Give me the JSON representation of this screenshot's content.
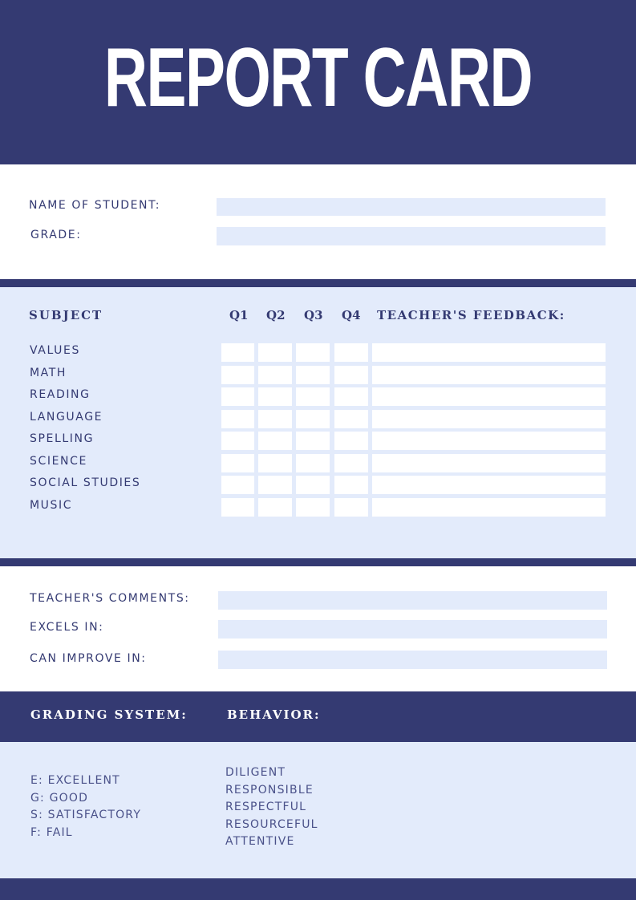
{
  "title": "REPORT CARD",
  "student": {
    "name_label": "NAME OF STUDENT:",
    "grade_label": "GRADE:"
  },
  "subjects_table": {
    "headers": {
      "subject": "SUBJECT",
      "q1": "Q1",
      "q2": "Q2",
      "q3": "Q3",
      "q4": "Q4",
      "feedback": "TEACHER'S FEEDBACK:"
    },
    "rows": [
      "VALUES",
      "MATH",
      "READING",
      "LANGUAGE",
      "SPELLING",
      "SCIENCE",
      "SOCIAL STUDIES",
      "MUSIC"
    ]
  },
  "comments": {
    "teacher_comments_label": "TEACHER'S COMMENTS:",
    "excels_label": "EXCELS IN:",
    "improve_label": "CAN IMPROVE IN:"
  },
  "grading": {
    "heading": "GRADING SYSTEM:",
    "items": [
      "E: EXCELLENT",
      "G: GOOD",
      "S: SATISFACTORY",
      "F: FAIL"
    ]
  },
  "behavior": {
    "heading": "BEHAVIOR:",
    "items": [
      "DILIGENT",
      "RESPONSIBLE",
      "RESPECTFUL",
      "RESOURCEFUL",
      "ATTENTIVE"
    ]
  },
  "colors": {
    "navy": "#343a72",
    "light": "#e3ebfb"
  }
}
